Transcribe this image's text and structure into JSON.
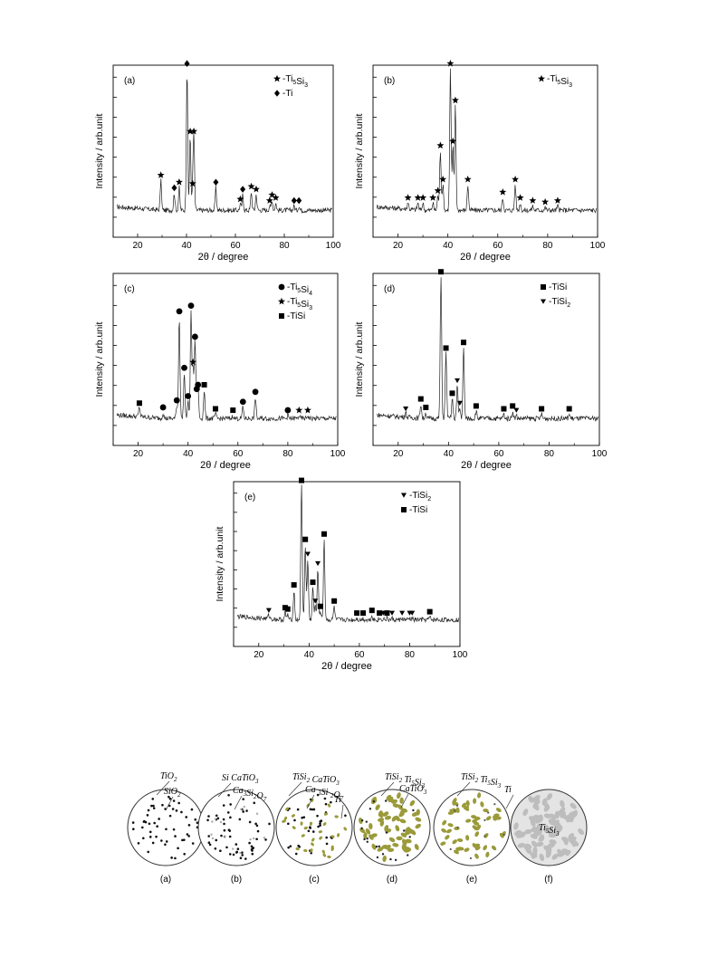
{
  "figure": {
    "xlabel": "2θ / degree",
    "ylabel": "Intensity / arb.unit",
    "x_ticks": [
      20,
      40,
      60,
      80,
      100
    ]
  },
  "chart_data": [
    {
      "type": "line",
      "panel": "(a)",
      "xlim": [
        10,
        100
      ],
      "x_ticks": [
        20,
        40,
        60,
        80,
        100
      ],
      "xlabel": "2θ / degree",
      "ylabel": "Intensity / arb.unit",
      "legend": [
        {
          "marker": "★",
          "label": "-Ti5Si3"
        },
        {
          "marker": "◆",
          "label": "-Ti"
        }
      ],
      "peaks": [
        [
          29.5,
          0.21,
          "star"
        ],
        [
          35,
          0.12,
          "diamond"
        ],
        [
          37,
          0.16,
          "star"
        ],
        [
          40.2,
          1.0,
          "diamond"
        ],
        [
          41.5,
          0.52,
          "star"
        ],
        [
          42.5,
          0.15,
          "star"
        ],
        [
          43,
          0.52,
          "star"
        ],
        [
          52,
          0.16,
          "diamond"
        ],
        [
          62,
          0.04,
          "star"
        ],
        [
          63,
          0.11,
          "diamond"
        ],
        [
          66.5,
          0.13,
          "star"
        ],
        [
          68.5,
          0.11,
          "star"
        ],
        [
          74,
          0.03,
          "star"
        ],
        [
          75,
          0.07,
          "star"
        ],
        [
          76.5,
          0.05,
          "star"
        ],
        [
          84,
          0.03,
          "diamond"
        ],
        [
          86,
          0.03,
          "diamond"
        ]
      ],
      "baseline": 0.05
    },
    {
      "type": "line",
      "panel": "(b)",
      "xlim": [
        10,
        100
      ],
      "x_ticks": [
        20,
        40,
        60,
        80,
        100
      ],
      "xlabel": "2θ / degree",
      "ylabel": "Intensity / arb.unit",
      "legend": [
        {
          "marker": "★",
          "label": "-Ti5Si3"
        }
      ],
      "peaks": [
        [
          24,
          0.05,
          "star"
        ],
        [
          28,
          0.05,
          "star"
        ],
        [
          30,
          0.05,
          "star"
        ],
        [
          34,
          0.05,
          "star"
        ],
        [
          36,
          0.1,
          "star"
        ],
        [
          37,
          0.42,
          "star"
        ],
        [
          38,
          0.18,
          "star"
        ],
        [
          41,
          1.0,
          "star"
        ],
        [
          42,
          0.45,
          "star"
        ],
        [
          43,
          0.74,
          "star"
        ],
        [
          48,
          0.18,
          "star"
        ],
        [
          62,
          0.09,
          "star"
        ],
        [
          67,
          0.18,
          "star"
        ],
        [
          69,
          0.05,
          "star"
        ],
        [
          74,
          0.03,
          "star"
        ],
        [
          79,
          0.02,
          "star"
        ],
        [
          84,
          0.03,
          "star"
        ]
      ],
      "baseline": 0.05
    },
    {
      "type": "line",
      "panel": "(c)",
      "xlim": [
        10,
        100
      ],
      "x_ticks": [
        20,
        40,
        60,
        80,
        100
      ],
      "xlabel": "2θ / degree",
      "ylabel": "Intensity / arb.unit",
      "legend": [
        {
          "marker": "●",
          "label": "-Ti5Si4"
        },
        {
          "marker": "★",
          "label": "-Ti5Si3"
        },
        {
          "marker": "■",
          "label": "-TiSi"
        }
      ],
      "peaks": [
        [
          20.5,
          0.07,
          "square"
        ],
        [
          30,
          0.04,
          "circle"
        ],
        [
          35.5,
          0.09,
          "circle"
        ],
        [
          36.5,
          0.72,
          "circle"
        ],
        [
          38.5,
          0.32,
          "circle"
        ],
        [
          40,
          0.12,
          "circle"
        ],
        [
          41.2,
          0.76,
          "circle"
        ],
        [
          42,
          0.36,
          "star"
        ],
        [
          42.8,
          0.54,
          "circle"
        ],
        [
          43.5,
          0.17,
          "circle"
        ],
        [
          44,
          0.2,
          "circle"
        ],
        [
          46.5,
          0.2,
          "square"
        ],
        [
          51,
          0.03,
          "square"
        ],
        [
          58,
          0.02,
          "square"
        ],
        [
          62,
          0.08,
          "circle"
        ],
        [
          67,
          0.15,
          "circle"
        ],
        [
          80,
          0.02,
          "circle"
        ],
        [
          84.5,
          0.02,
          "star"
        ],
        [
          88,
          0.02,
          "star"
        ]
      ],
      "baseline": 0.05
    },
    {
      "type": "line",
      "panel": "(d)",
      "xlim": [
        10,
        100
      ],
      "x_ticks": [
        20,
        40,
        60,
        80,
        100
      ],
      "xlabel": "2θ / degree",
      "ylabel": "Intensity / arb.unit",
      "legend": [
        {
          "marker": "■",
          "label": "-TiSi"
        },
        {
          "marker": "▼",
          "label": "-TiSi2"
        }
      ],
      "peaks": [
        [
          23,
          0.03,
          "triangle"
        ],
        [
          29,
          0.1,
          "square"
        ],
        [
          31,
          0.04,
          "square"
        ],
        [
          37,
          1.0,
          "square"
        ],
        [
          39,
          0.46,
          "square"
        ],
        [
          41.5,
          0.14,
          "square"
        ],
        [
          43.5,
          0.23,
          "triangle"
        ],
        [
          44.5,
          0.07,
          "triangle"
        ],
        [
          46,
          0.5,
          "square"
        ],
        [
          51,
          0.05,
          "square"
        ],
        [
          62,
          0.03,
          "square"
        ],
        [
          65.5,
          0.05,
          "square"
        ],
        [
          67,
          0.02,
          "triangle"
        ],
        [
          77,
          0.03,
          "square"
        ],
        [
          88,
          0.03,
          "square"
        ]
      ],
      "baseline": 0.05
    },
    {
      "type": "line",
      "panel": "(e)",
      "xlim": [
        10,
        100
      ],
      "x_ticks": [
        20,
        40,
        60,
        80,
        100
      ],
      "xlabel": "2θ / degree",
      "ylabel": "Intensity / arb.unit",
      "legend": [
        {
          "marker": "▼",
          "label": "-TiSi2"
        },
        {
          "marker": "■",
          "label": "-TiSi"
        }
      ],
      "peaks": [
        [
          24,
          0.03,
          "triangle"
        ],
        [
          30.5,
          0.05,
          "square"
        ],
        [
          31.5,
          0.04,
          "square"
        ],
        [
          34,
          0.22,
          "square"
        ],
        [
          37,
          1.0,
          "square"
        ],
        [
          38.5,
          0.56,
          "square"
        ],
        [
          39.5,
          0.45,
          "triangle"
        ],
        [
          41.5,
          0.24,
          "square"
        ],
        [
          42.5,
          0.1,
          "triangle"
        ],
        [
          43.5,
          0.38,
          "triangle"
        ],
        [
          44.5,
          0.06,
          "square"
        ],
        [
          46,
          0.6,
          "square"
        ],
        [
          50,
          0.1,
          "square"
        ],
        [
          59,
          0.01,
          "square"
        ],
        [
          61.5,
          0.01,
          "square"
        ],
        [
          65,
          0.03,
          "square"
        ],
        [
          68,
          0.01,
          "square"
        ],
        [
          69.5,
          0.01,
          "triangle"
        ],
        [
          71,
          0.01,
          "square"
        ],
        [
          73,
          0.01,
          "triangle"
        ],
        [
          77,
          0.01,
          "triangle"
        ],
        [
          80,
          0.01,
          "triangle"
        ],
        [
          81,
          0.01,
          "triangle"
        ],
        [
          88,
          0.02,
          "square"
        ]
      ],
      "baseline": 0.05
    }
  ],
  "schematic": {
    "circles": [
      {
        "caption": "(a)",
        "labels": [
          "TiO2",
          "SiO2"
        ]
      },
      {
        "caption": "(b)",
        "labels": [
          "Si CaTiO3",
          "Ca3Si2O7"
        ]
      },
      {
        "caption": "(c)",
        "labels": [
          "TiSi2 CaTiO3",
          "Ca 3Si 2O7",
          "Ti"
        ]
      },
      {
        "caption": "(d)",
        "labels": [
          "TiSi2 Ti5Si3",
          "CaTiO3"
        ]
      },
      {
        "caption": "(e)",
        "labels": [
          "TiSi2 Ti5Si3",
          "Ti"
        ]
      },
      {
        "caption": "(f)",
        "labels": [
          "Ti5Si3"
        ]
      }
    ],
    "colors": {
      "dot": "#111111",
      "olive": "#9a9a3a",
      "grey": "#bdbdbd"
    }
  }
}
